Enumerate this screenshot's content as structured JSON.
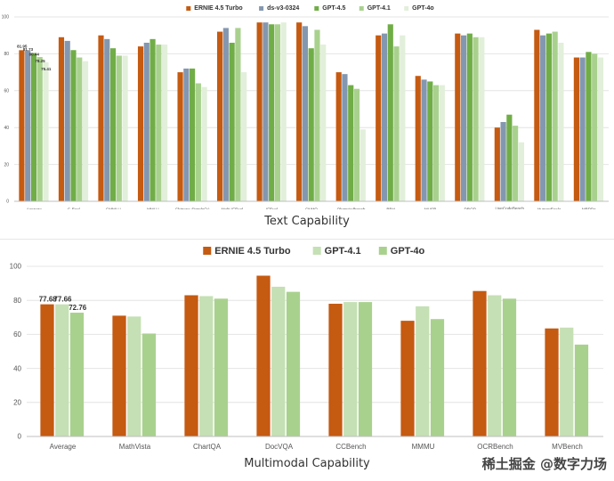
{
  "captions": {
    "top": "Text Capability",
    "bottom": "Multimodal Capability"
  },
  "watermark": "稀土掘金 @数字力场",
  "chart_data": [
    {
      "type": "bar",
      "title": "",
      "xlabel": "",
      "ylabel": "",
      "ylim": [
        0,
        100
      ],
      "yticks": [
        0,
        20,
        40,
        60,
        80,
        100
      ],
      "grid": true,
      "legend_position": "top-center",
      "categories": [
        "Average",
        "C-Eval",
        "CMMLU",
        "MMLU",
        "Chinese-SimpleQA",
        "Multi-IFEval",
        "IFEval",
        "CNMO",
        "Olympiadbench",
        "BBH",
        "MUSR",
        "DROP",
        "LiveCodeBench (202408.01-2025.02)",
        "HumanEval+",
        "MBPP+"
      ],
      "series": [
        {
          "name": "ERNIE 4.5 Turbo",
          "color": "#c55a11",
          "values": [
            81.95,
            89,
            90,
            84,
            70,
            92,
            97,
            97,
            70,
            90,
            68,
            91,
            40,
            93,
            78
          ]
        },
        {
          "name": "ds-v3-0324",
          "color": "#8497b0",
          "values": [
            81.73,
            87,
            88,
            86,
            72,
            94,
            97,
            95,
            69,
            91,
            66,
            90,
            43,
            90,
            78
          ]
        },
        {
          "name": "GPT-4.5",
          "color": "#70ad47",
          "values": [
            80.44,
            82,
            83,
            88,
            72,
            86,
            96,
            83,
            63,
            96,
            65,
            91,
            47,
            91,
            81
          ]
        },
        {
          "name": "GPT-4.1",
          "color": "#a9d18e",
          "values": [
            78.25,
            78,
            79,
            85,
            64,
            94,
            96,
            93,
            61,
            84,
            63,
            89,
            41,
            92,
            80
          ]
        },
        {
          "name": "GPT-4o",
          "color": "#e2efda",
          "values": [
            75.41,
            76,
            79,
            85,
            62,
            70,
            97,
            85,
            39,
            90,
            63,
            89,
            32,
            86,
            78
          ]
        }
      ],
      "data_labels": [
        "81.95",
        "81.73",
        "80.44",
        "78.25",
        "75.41"
      ]
    },
    {
      "type": "bar",
      "title": "",
      "xlabel": "",
      "ylabel": "",
      "ylim": [
        0,
        100
      ],
      "yticks": [
        0,
        20,
        40,
        60,
        80,
        100
      ],
      "grid": true,
      "legend_position": "top-center",
      "categories": [
        "Average",
        "MathVista",
        "ChartQA",
        "DocVQA",
        "CCBench",
        "MMMU",
        "OCRBench",
        "MVBench"
      ],
      "series": [
        {
          "name": "ERNIE 4.5 Turbo",
          "color": "#c55a11",
          "values": [
            77.68,
            71,
            83,
            94.5,
            78,
            68,
            85.5,
            63.5
          ]
        },
        {
          "name": "GPT-4.1",
          "color": "#c5e0b4",
          "values": [
            77.66,
            70.5,
            82.5,
            88,
            79,
            76.5,
            83,
            64
          ]
        },
        {
          "name": "GPT-4o",
          "color": "#a9d18e",
          "values": [
            72.76,
            60.5,
            81,
            85,
            79,
            69,
            81,
            54
          ]
        }
      ],
      "data_labels": [
        "77.68",
        "77.66",
        "72.76"
      ]
    }
  ]
}
